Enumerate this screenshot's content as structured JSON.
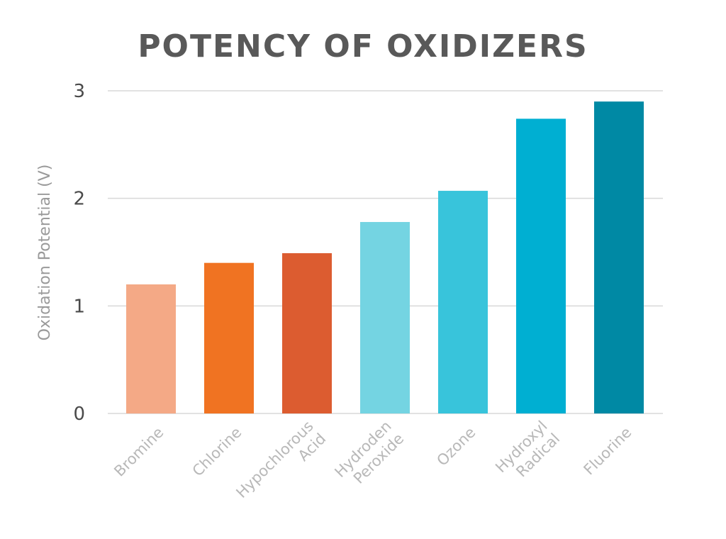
{
  "chart_data": {
    "type": "bar",
    "title": "POTENCY OF OXIDIZERS",
    "xlabel": "",
    "ylabel": "Oxidation Potential (V)",
    "ylim": [
      0,
      3
    ],
    "yticks": [
      "0",
      "1",
      "2",
      "3"
    ],
    "grid": true,
    "categories": [
      [
        "Bromine"
      ],
      [
        "Chlorine"
      ],
      [
        "Hypochlorous",
        "Acid"
      ],
      [
        "Hydroden",
        "Peroxide"
      ],
      [
        "Ozone"
      ],
      [
        "Hydroxyl",
        "Radical"
      ],
      [
        "Fluorine"
      ]
    ],
    "values": [
      1.2,
      1.4,
      1.49,
      1.78,
      2.07,
      2.74,
      2.9
    ],
    "colors": [
      "#f4a986",
      "#f07322",
      "#dc5c30",
      "#74d4e2",
      "#38c4db",
      "#00afd2",
      "#0089a4"
    ]
  }
}
